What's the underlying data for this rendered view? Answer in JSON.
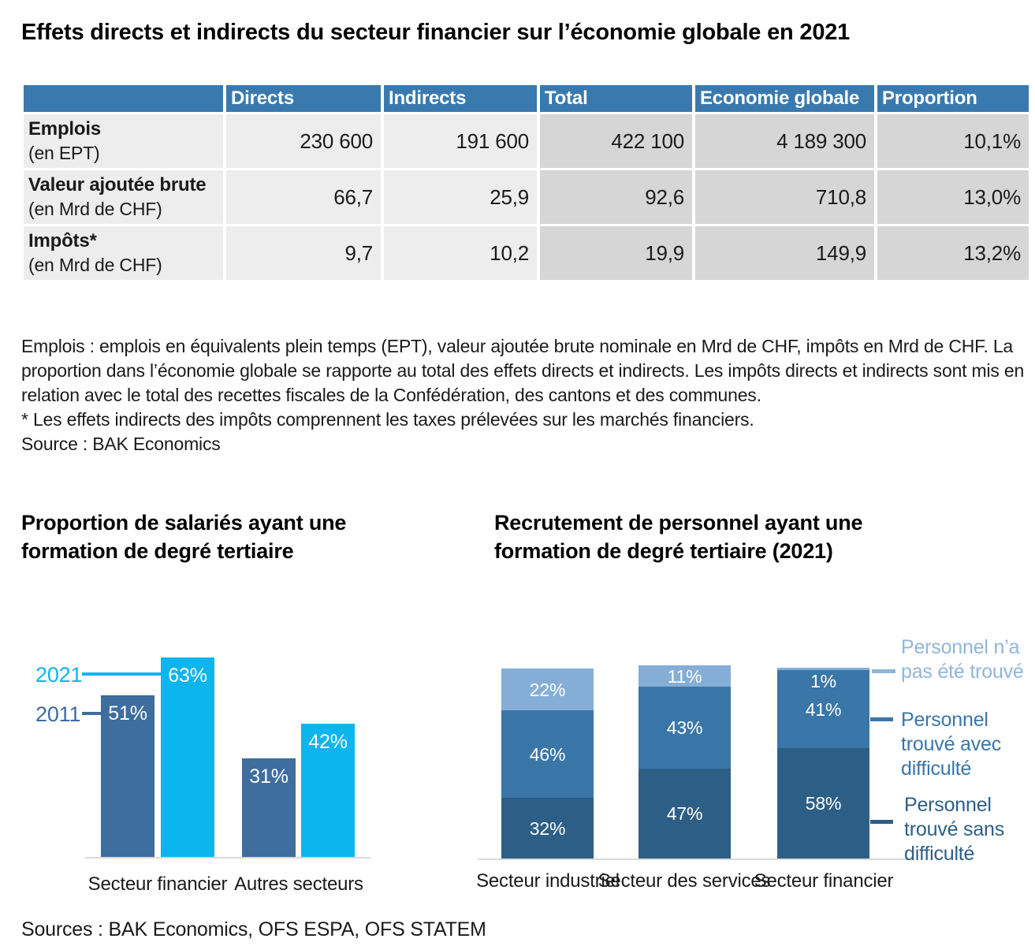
{
  "page": {
    "title": "Effets directs et indirects du secteur financier sur l’économie globale en 2021",
    "sources": "Sources : BAK Economics, OFS ESPA, OFS STATEM"
  },
  "table": {
    "headers": [
      "",
      "Directs",
      "Indirects",
      "Total",
      "Economie globale",
      "Proportion"
    ],
    "rows": [
      {
        "label": "Emplois",
        "unit": "(en EPT)",
        "values": [
          "230 600",
          "191 600",
          "422 100",
          "4 189 300",
          "10,1%"
        ]
      },
      {
        "label": "Valeur ajoutée brute",
        "unit": "(en Mrd de CHF)",
        "values": [
          "66,7",
          "25,9",
          "92,6",
          "710,8",
          "13,0%"
        ]
      },
      {
        "label": "Impôts*",
        "unit": "(en Mrd de CHF)",
        "values": [
          "9,7",
          "10,2",
          "19,9",
          "149,9",
          "13,2%"
        ]
      }
    ],
    "header_color": "#3a79ae",
    "cell_light_color": "#ededed",
    "cell_dark_color": "#d6d6d6"
  },
  "notes": {
    "body": "Emplois : emplois en équivalents plein temps (EPT), valeur ajoutée brute nominale en Mrd de CHF, impôts en Mrd de CHF. La proportion dans l’économie globale se rapporte au total des effets directs et indirects. Les impôts directs et indirects sont mis en relation avec le total des recettes fiscales de la Confédération, des cantons et des communes.",
    "asterisk": "* Les effets indirects des impôts comprennent les taxes prélevées sur les marchés financiers.",
    "source": "Source : BAK Economics"
  },
  "chart_data": [
    {
      "type": "bar",
      "title": "Proportion de salariés ayant une formation de degré tertiaire",
      "categories": [
        "Secteur financier",
        "Autres secteurs"
      ],
      "series": [
        {
          "name": "2011",
          "values": [
            51,
            31
          ],
          "color": "#3e6d9e"
        },
        {
          "name": "2021",
          "values": [
            63,
            42
          ],
          "color": "#0cb5ee"
        }
      ],
      "value_suffix": "%",
      "ylim": [
        0,
        70
      ],
      "grid": false,
      "legend_position": "left-callouts"
    },
    {
      "type": "bar",
      "stacked": true,
      "title": "Recrutement de personnel ayant une formation de degré tertiaire (2021)",
      "categories": [
        "Secteur industriel",
        "Secteur des services",
        "Secteur financier"
      ],
      "series": [
        {
          "name": "Personnel trouvé sans difficulté",
          "legend_lines": [
            "Personnel",
            "trouvé sans",
            "difficulté"
          ],
          "values": [
            32,
            47,
            58
          ],
          "color": "#2d5f86",
          "legend_color": "#2d5f86"
        },
        {
          "name": "Personnel trouvé avec difficulté",
          "legend_lines": [
            "Personnel",
            "trouvé avec",
            "difficulté"
          ],
          "values": [
            46,
            43,
            41
          ],
          "color": "#3a76a8",
          "legend_color": "#3a76a8"
        },
        {
          "name": "Personnel n’a pas été trouvé",
          "legend_lines": [
            "Personnel n’a",
            "pas été trouvé"
          ],
          "values": [
            22,
            11,
            1
          ],
          "color": "#85aed6",
          "legend_color": "#8fb6dc"
        }
      ],
      "value_suffix": "%",
      "ylim": [
        0,
        100
      ],
      "grid": false,
      "legend_position": "right"
    }
  ]
}
